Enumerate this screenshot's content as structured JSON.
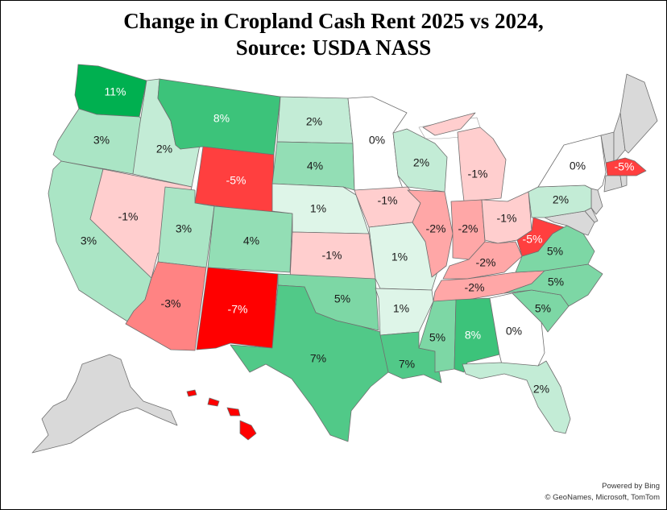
{
  "title": {
    "line1": "Change in Cropland Cash Rent 2025 vs 2024,",
    "line2": "Source: USDA NASS"
  },
  "attribution": {
    "line1": "Powered by Bing",
    "line2": "© GeoNames, Microsoft, TomTom"
  },
  "scale_colors": {
    "no_data": "#d9d9d9",
    "max_negative": "#ff0000",
    "zero": "#ffffff",
    "max_positive": "#00b050"
  },
  "states": [
    {
      "state": "WA",
      "label": "11%",
      "value": 11
    },
    {
      "state": "OR",
      "label": "3%",
      "value": 3
    },
    {
      "state": "CA",
      "label": "3%",
      "value": 3
    },
    {
      "state": "ID",
      "label": "2%",
      "value": 2
    },
    {
      "state": "NV",
      "label": "-1%",
      "value": -1
    },
    {
      "state": "MT",
      "label": "8%",
      "value": 8
    },
    {
      "state": "WY",
      "label": "-5%",
      "value": -5
    },
    {
      "state": "UT",
      "label": "3%",
      "value": 3
    },
    {
      "state": "AZ",
      "label": "-3%",
      "value": -3
    },
    {
      "state": "CO",
      "label": "4%",
      "value": 4
    },
    {
      "state": "NM",
      "label": "-7%",
      "value": -7
    },
    {
      "state": "ND",
      "label": "2%",
      "value": 2
    },
    {
      "state": "SD",
      "label": "4%",
      "value": 4
    },
    {
      "state": "NE",
      "label": "1%",
      "value": 1
    },
    {
      "state": "KS",
      "label": "-1%",
      "value": -1
    },
    {
      "state": "OK",
      "label": "5%",
      "value": 5
    },
    {
      "state": "TX",
      "label": "7%",
      "value": 7
    },
    {
      "state": "MN",
      "label": "0%",
      "value": 0
    },
    {
      "state": "IA",
      "label": "-1%",
      "value": -1
    },
    {
      "state": "MO",
      "label": "1%",
      "value": 1
    },
    {
      "state": "AR",
      "label": "1%",
      "value": 1
    },
    {
      "state": "LA",
      "label": "7%",
      "value": 7
    },
    {
      "state": "WI",
      "label": "2%",
      "value": 2
    },
    {
      "state": "IL",
      "label": "-2%",
      "value": -2
    },
    {
      "state": "MI",
      "label": "-1%",
      "value": -1
    },
    {
      "state": "IN",
      "label": "-2%",
      "value": -2
    },
    {
      "state": "OH",
      "label": "-1%",
      "value": -1
    },
    {
      "state": "KY",
      "label": "-2%",
      "value": -2
    },
    {
      "state": "TN",
      "label": "-2%",
      "value": -2
    },
    {
      "state": "MS",
      "label": "5%",
      "value": 5
    },
    {
      "state": "AL",
      "label": "8%",
      "value": 8
    },
    {
      "state": "GA",
      "label": "0%",
      "value": 0
    },
    {
      "state": "FL",
      "label": "2%",
      "value": 2
    },
    {
      "state": "SC",
      "label": "5%",
      "value": 5
    },
    {
      "state": "NC",
      "label": "5%",
      "value": 5
    },
    {
      "state": "VA",
      "label": "5%",
      "value": 5
    },
    {
      "state": "WV",
      "label": "-5%",
      "value": -5
    },
    {
      "state": "PA",
      "label": "2%",
      "value": 2
    },
    {
      "state": "NY",
      "label": "0%",
      "value": 0
    },
    {
      "state": "MA",
      "label": "-5%",
      "value": -5
    },
    {
      "state": "HI",
      "label": "",
      "value": -7
    }
  ]
}
